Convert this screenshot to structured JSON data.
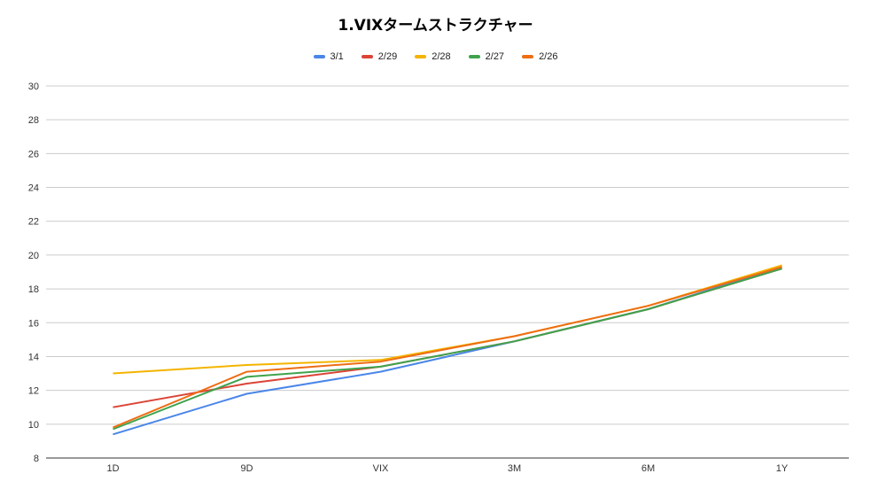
{
  "chart_data": {
    "type": "line",
    "title": "1.VIXタームストラクチャー",
    "xlabel": "",
    "ylabel": "",
    "categories": [
      "1D",
      "9D",
      "VIX",
      "3M",
      "6M",
      "1Y"
    ],
    "ylim": [
      8,
      30
    ],
    "yticks": [
      8,
      10,
      12,
      14,
      16,
      18,
      20,
      22,
      24,
      26,
      28,
      30
    ],
    "grid": true,
    "legend_position": "top",
    "series": [
      {
        "name": "3/1",
        "color": "#4a86e8",
        "values": [
          9.4,
          11.8,
          13.1,
          14.9,
          16.8,
          19.3
        ]
      },
      {
        "name": "2/29",
        "color": "#db4437",
        "values": [
          11.0,
          12.4,
          13.4,
          14.9,
          16.8,
          19.2
        ]
      },
      {
        "name": "2/28",
        "color": "#f4b400",
        "values": [
          13.0,
          13.5,
          13.8,
          15.2,
          17.0,
          19.4
        ]
      },
      {
        "name": "2/27",
        "color": "#3fa34d",
        "values": [
          9.7,
          12.8,
          13.4,
          14.9,
          16.8,
          19.2
        ]
      },
      {
        "name": "2/26",
        "color": "#ee6d15",
        "values": [
          9.8,
          13.1,
          13.7,
          15.2,
          17.0,
          19.3
        ]
      }
    ]
  }
}
